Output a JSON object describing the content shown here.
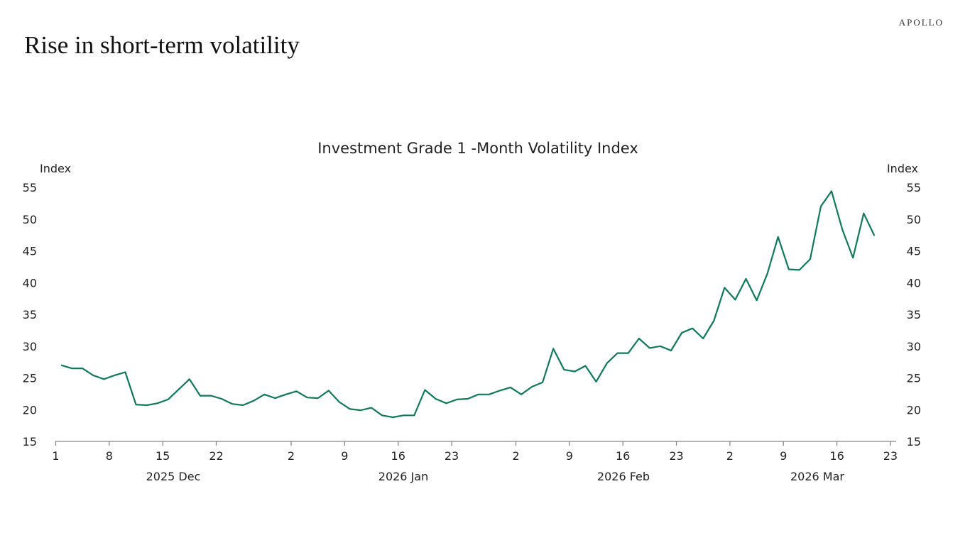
{
  "brand": "APOLLO",
  "slide_title": "Rise in short-term volatility",
  "chart_data": {
    "type": "line",
    "title": "Investment Grade 1 -Month Volatility Index",
    "ylabel_left": "Index",
    "ylabel_right": "Index",
    "ylim": [
      15,
      55
    ],
    "yticks": [
      15,
      20,
      25,
      30,
      35,
      40,
      45,
      50,
      55
    ],
    "grid": false,
    "line_color": "#0f7a5a",
    "xticks": [
      {
        "label": "1",
        "date": "2025-12-01"
      },
      {
        "label": "8",
        "date": "2025-12-08"
      },
      {
        "label": "15",
        "date": "2025-12-15"
      },
      {
        "label": "22",
        "date": "2025-12-22"
      },
      {
        "label": "2",
        "date": "2026-01-02"
      },
      {
        "label": "9",
        "date": "2026-01-09"
      },
      {
        "label": "16",
        "date": "2026-01-16"
      },
      {
        "label": "23",
        "date": "2026-01-23"
      },
      {
        "label": "2",
        "date": "2026-02-02"
      },
      {
        "label": "9",
        "date": "2026-02-09"
      },
      {
        "label": "16",
        "date": "2026-02-16"
      },
      {
        "label": "23",
        "date": "2026-02-23"
      },
      {
        "label": "2",
        "date": "2026-03-02"
      },
      {
        "label": "9",
        "date": "2026-03-09"
      },
      {
        "label": "16",
        "date": "2026-03-16"
      },
      {
        "label": "23",
        "date": "2026-03-23"
      }
    ],
    "month_labels": [
      "2025 Dec",
      "2026 Jan",
      "2026 Feb",
      "2026 Mar"
    ],
    "x": [
      "2025-12-01",
      "2025-12-02",
      "2025-12-03",
      "2025-12-04",
      "2025-12-05",
      "2025-12-08",
      "2025-12-09",
      "2025-12-10",
      "2025-12-11",
      "2025-12-12",
      "2025-12-15",
      "2025-12-16",
      "2025-12-17",
      "2025-12-18",
      "2025-12-19",
      "2025-12-22",
      "2025-12-23",
      "2025-12-24",
      "2025-12-26",
      "2025-12-29",
      "2025-12-30",
      "2025-12-31",
      "2026-01-02",
      "2026-01-05",
      "2026-01-06",
      "2026-01-07",
      "2026-01-08",
      "2026-01-09",
      "2026-01-12",
      "2026-01-13",
      "2026-01-14",
      "2026-01-15",
      "2026-01-16",
      "2026-01-19",
      "2026-01-20",
      "2026-01-21",
      "2026-01-22",
      "2026-01-23",
      "2026-01-26",
      "2026-01-27",
      "2026-01-28",
      "2026-01-29",
      "2026-01-30",
      "2026-02-02",
      "2026-02-03",
      "2026-02-04",
      "2026-02-05",
      "2026-02-06",
      "2026-02-09",
      "2026-02-10",
      "2026-02-11",
      "2026-02-12",
      "2026-02-13",
      "2026-02-16",
      "2026-02-17",
      "2026-02-18",
      "2026-02-19",
      "2026-02-20",
      "2026-02-23",
      "2026-02-24",
      "2026-02-25",
      "2026-02-26",
      "2026-02-27",
      "2026-03-02",
      "2026-03-03",
      "2026-03-04",
      "2026-03-05",
      "2026-03-06",
      "2026-03-09",
      "2026-03-10",
      "2026-03-11",
      "2026-03-12",
      "2026-03-13",
      "2026-03-16",
      "2026-03-17",
      "2026-03-18",
      "2026-03-19"
    ],
    "values": [
      27.0,
      26.5,
      26.5,
      25.4,
      24.8,
      25.4,
      25.9,
      20.8,
      20.7,
      21.0,
      21.6,
      23.2,
      24.8,
      22.2,
      22.2,
      21.7,
      20.9,
      20.7,
      21.4,
      22.4,
      21.8,
      22.4,
      22.9,
      21.9,
      21.8,
      23.0,
      21.2,
      20.1,
      19.9,
      20.3,
      19.1,
      18.8,
      19.1,
      19.1,
      23.1,
      21.7,
      21.0,
      21.6,
      21.7,
      22.4,
      22.4,
      23.0,
      23.5,
      22.4,
      23.6,
      24.3,
      29.6,
      26.3,
      26.0,
      26.9,
      24.4,
      27.3,
      28.9,
      28.9,
      31.2,
      29.7,
      30.0,
      29.3,
      32.1,
      32.8,
      31.2,
      34.0,
      39.2,
      37.3,
      40.6,
      37.2,
      41.4,
      47.2,
      42.1,
      42.0,
      43.7,
      52.0,
      54.4,
      48.4,
      43.9,
      50.9,
      47.4
    ]
  }
}
